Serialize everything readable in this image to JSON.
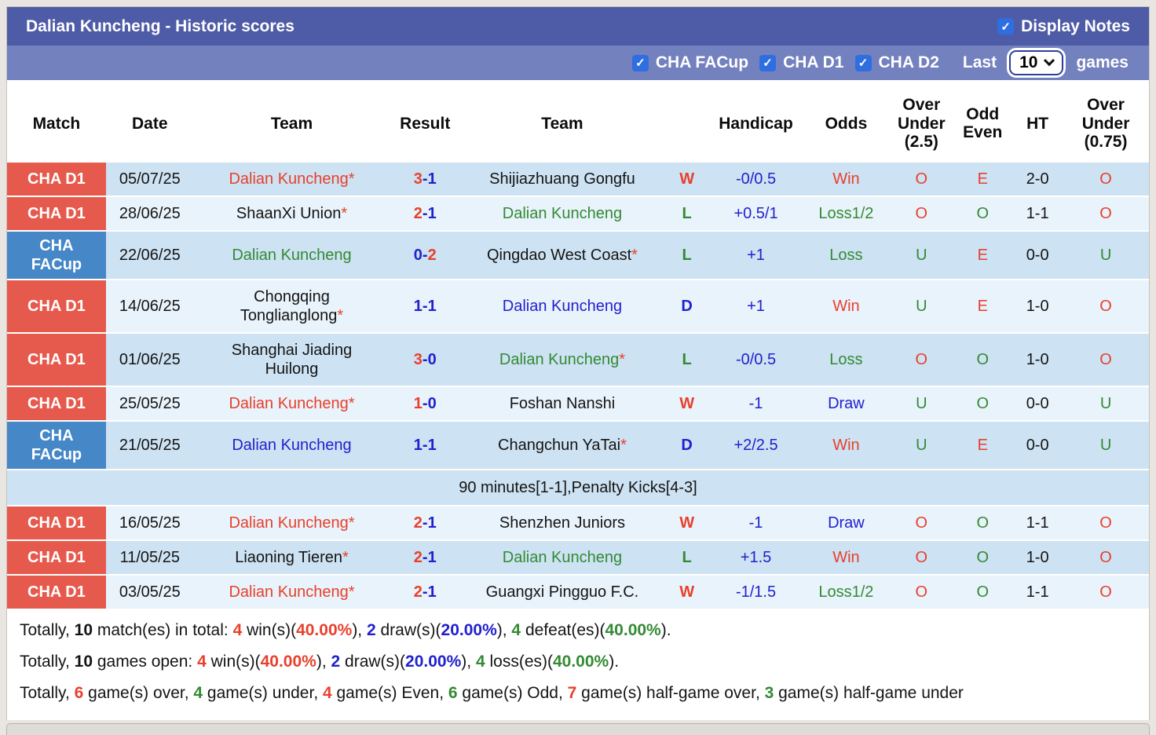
{
  "palette": {
    "red": "#e8402c",
    "green": "#338a33",
    "blue": "#2121cd",
    "black": "#141414",
    "badge_red": "#e65a4d",
    "badge_blue": "#4687c7",
    "bar_dark": "#4e5ba6",
    "bar_light": "#7381bf",
    "row_dark": "#cde2f2",
    "row_light": "#e9f3fb",
    "checkbox_blue": "#2e6ee0"
  },
  "icons": {
    "check": "✓"
  },
  "header": {
    "title": "Dalian Kuncheng - Historic scores",
    "display_notes_label": "Display Notes",
    "display_notes_checked": true,
    "filters": [
      {
        "label": "CHA FACup",
        "checked": true
      },
      {
        "label": "CHA D1",
        "checked": true
      },
      {
        "label": "CHA D2",
        "checked": true
      }
    ],
    "last_label": "Last",
    "last_value": "10",
    "games_label": "games"
  },
  "table": {
    "columns": [
      "Match",
      "Date",
      "Team",
      "Result",
      "Team",
      "",
      "Handicap",
      "Odds",
      "Over\nUnder\n(2.5)",
      "Odd\nEven",
      "HT",
      "Over\nUnder\n(0.75)"
    ],
    "rows": [
      {
        "league": "CHA D1",
        "badge": "red",
        "shade": "dark",
        "date": "05/07/25",
        "home": {
          "name": "Dalian Kuncheng",
          "star": true,
          "color": "red"
        },
        "score": {
          "home": "3",
          "away": "1",
          "home_color": "red",
          "away_color": "blue"
        },
        "away": {
          "name": "Shijiazhuang Gongfu",
          "star": false,
          "color": "black"
        },
        "wdl": {
          "t": "W",
          "c": "red"
        },
        "handicap": "-0/0.5",
        "odds": {
          "t": "Win",
          "c": "red"
        },
        "ou25": {
          "t": "O",
          "c": "red"
        },
        "odd_even": {
          "t": "E",
          "c": "red"
        },
        "ht": "2-0",
        "ou075": {
          "t": "O",
          "c": "red"
        },
        "note": null
      },
      {
        "league": "CHA D1",
        "badge": "red",
        "shade": "light",
        "date": "28/06/25",
        "home": {
          "name": "ShaanXi Union",
          "star": true,
          "color": "black"
        },
        "score": {
          "home": "2",
          "away": "1",
          "home_color": "red",
          "away_color": "blue"
        },
        "away": {
          "name": "Dalian Kuncheng",
          "star": false,
          "color": "green"
        },
        "wdl": {
          "t": "L",
          "c": "green"
        },
        "handicap": "+0.5/1",
        "odds": {
          "t": "Loss1/2",
          "c": "green"
        },
        "ou25": {
          "t": "O",
          "c": "red"
        },
        "odd_even": {
          "t": "O",
          "c": "green"
        },
        "ht": "1-1",
        "ou075": {
          "t": "O",
          "c": "red"
        },
        "note": null
      },
      {
        "league": "CHA\nFACup",
        "badge": "blue",
        "shade": "dark",
        "date": "22/06/25",
        "home": {
          "name": "Dalian Kuncheng",
          "star": false,
          "color": "green"
        },
        "score": {
          "home": "0",
          "away": "2",
          "home_color": "blue",
          "away_color": "red"
        },
        "away": {
          "name": "Qingdao West Coast",
          "star": true,
          "color": "black"
        },
        "wdl": {
          "t": "L",
          "c": "green"
        },
        "handicap": "+1",
        "odds": {
          "t": "Loss",
          "c": "green"
        },
        "ou25": {
          "t": "U",
          "c": "green"
        },
        "odd_even": {
          "t": "E",
          "c": "red"
        },
        "ht": "0-0",
        "ou075": {
          "t": "U",
          "c": "green"
        },
        "note": null
      },
      {
        "league": "CHA D1",
        "badge": "red",
        "shade": "light",
        "date": "14/06/25",
        "home": {
          "name": "Chongqing\nTonglianglong",
          "star": true,
          "color": "black"
        },
        "score": {
          "home": "1",
          "away": "1",
          "home_color": "blue",
          "away_color": "blue"
        },
        "away": {
          "name": "Dalian Kuncheng",
          "star": false,
          "color": "blue"
        },
        "wdl": {
          "t": "D",
          "c": "blue"
        },
        "handicap": "+1",
        "odds": {
          "t": "Win",
          "c": "red"
        },
        "ou25": {
          "t": "U",
          "c": "green"
        },
        "odd_even": {
          "t": "E",
          "c": "red"
        },
        "ht": "1-0",
        "ou075": {
          "t": "O",
          "c": "red"
        },
        "note": null
      },
      {
        "league": "CHA D1",
        "badge": "red",
        "shade": "dark",
        "date": "01/06/25",
        "home": {
          "name": "Shanghai Jiading\nHuilong",
          "star": false,
          "color": "black"
        },
        "score": {
          "home": "3",
          "away": "0",
          "home_color": "red",
          "away_color": "blue"
        },
        "away": {
          "name": "Dalian Kuncheng",
          "star": true,
          "color": "green"
        },
        "wdl": {
          "t": "L",
          "c": "green"
        },
        "handicap": "-0/0.5",
        "odds": {
          "t": "Loss",
          "c": "green"
        },
        "ou25": {
          "t": "O",
          "c": "red"
        },
        "odd_even": {
          "t": "O",
          "c": "green"
        },
        "ht": "1-0",
        "ou075": {
          "t": "O",
          "c": "red"
        },
        "note": null
      },
      {
        "league": "CHA D1",
        "badge": "red",
        "shade": "light",
        "date": "25/05/25",
        "home": {
          "name": "Dalian Kuncheng",
          "star": true,
          "color": "red"
        },
        "score": {
          "home": "1",
          "away": "0",
          "home_color": "red",
          "away_color": "blue"
        },
        "away": {
          "name": "Foshan Nanshi",
          "star": false,
          "color": "black"
        },
        "wdl": {
          "t": "W",
          "c": "red"
        },
        "handicap": "-1",
        "odds": {
          "t": "Draw",
          "c": "blue"
        },
        "ou25": {
          "t": "U",
          "c": "green"
        },
        "odd_even": {
          "t": "O",
          "c": "green"
        },
        "ht": "0-0",
        "ou075": {
          "t": "U",
          "c": "green"
        },
        "note": null
      },
      {
        "league": "CHA\nFACup",
        "badge": "blue",
        "shade": "dark",
        "date": "21/05/25",
        "home": {
          "name": "Dalian Kuncheng",
          "star": false,
          "color": "blue"
        },
        "score": {
          "home": "1",
          "away": "1",
          "home_color": "blue",
          "away_color": "blue"
        },
        "away": {
          "name": "Changchun YaTai",
          "star": true,
          "color": "black"
        },
        "wdl": {
          "t": "D",
          "c": "blue"
        },
        "handicap": "+2/2.5",
        "odds": {
          "t": "Win",
          "c": "red"
        },
        "ou25": {
          "t": "U",
          "c": "green"
        },
        "odd_even": {
          "t": "E",
          "c": "red"
        },
        "ht": "0-0",
        "ou075": {
          "t": "U",
          "c": "green"
        },
        "note": "90 minutes[1-1],Penalty Kicks[4-3]"
      },
      {
        "league": "CHA D1",
        "badge": "red",
        "shade": "light",
        "date": "16/05/25",
        "home": {
          "name": "Dalian Kuncheng",
          "star": true,
          "color": "red"
        },
        "score": {
          "home": "2",
          "away": "1",
          "home_color": "red",
          "away_color": "blue"
        },
        "away": {
          "name": "Shenzhen Juniors",
          "star": false,
          "color": "black"
        },
        "wdl": {
          "t": "W",
          "c": "red"
        },
        "handicap": "-1",
        "odds": {
          "t": "Draw",
          "c": "blue"
        },
        "ou25": {
          "t": "O",
          "c": "red"
        },
        "odd_even": {
          "t": "O",
          "c": "green"
        },
        "ht": "1-1",
        "ou075": {
          "t": "O",
          "c": "red"
        },
        "note": null
      },
      {
        "league": "CHA D1",
        "badge": "red",
        "shade": "dark",
        "date": "11/05/25",
        "home": {
          "name": "Liaoning Tieren",
          "star": true,
          "color": "black"
        },
        "score": {
          "home": "2",
          "away": "1",
          "home_color": "red",
          "away_color": "blue"
        },
        "away": {
          "name": "Dalian Kuncheng",
          "star": false,
          "color": "green"
        },
        "wdl": {
          "t": "L",
          "c": "green"
        },
        "handicap": "+1.5",
        "odds": {
          "t": "Win",
          "c": "red"
        },
        "ou25": {
          "t": "O",
          "c": "red"
        },
        "odd_even": {
          "t": "O",
          "c": "green"
        },
        "ht": "1-0",
        "ou075": {
          "t": "O",
          "c": "red"
        },
        "note": null
      },
      {
        "league": "CHA D1",
        "badge": "red",
        "shade": "light",
        "date": "03/05/25",
        "home": {
          "name": "Dalian Kuncheng",
          "star": true,
          "color": "red"
        },
        "score": {
          "home": "2",
          "away": "1",
          "home_color": "red",
          "away_color": "blue"
        },
        "away": {
          "name": "Guangxi Pingguo F.C.",
          "star": false,
          "color": "black"
        },
        "wdl": {
          "t": "W",
          "c": "red"
        },
        "handicap": "-1/1.5",
        "odds": {
          "t": "Loss1/2",
          "c": "green"
        },
        "ou25": {
          "t": "O",
          "c": "red"
        },
        "odd_even": {
          "t": "O",
          "c": "green"
        },
        "ht": "1-1",
        "ou075": {
          "t": "O",
          "c": "red"
        },
        "note": null
      }
    ]
  },
  "summary": {
    "lines": [
      [
        {
          "t": "Totally, ",
          "c": "black",
          "b": false
        },
        {
          "t": "10",
          "c": "black",
          "b": true
        },
        {
          "t": " match(es) in total: ",
          "c": "black",
          "b": false
        },
        {
          "t": "4",
          "c": "red",
          "b": true
        },
        {
          "t": " win(s)(",
          "c": "black",
          "b": false
        },
        {
          "t": "40.00%",
          "c": "red",
          "b": true
        },
        {
          "t": "), ",
          "c": "black",
          "b": false
        },
        {
          "t": "2",
          "c": "blue",
          "b": true
        },
        {
          "t": " draw(s)(",
          "c": "black",
          "b": false
        },
        {
          "t": "20.00%",
          "c": "blue",
          "b": true
        },
        {
          "t": "), ",
          "c": "black",
          "b": false
        },
        {
          "t": "4",
          "c": "green",
          "b": true
        },
        {
          "t": " defeat(es)(",
          "c": "black",
          "b": false
        },
        {
          "t": "40.00%",
          "c": "green",
          "b": true
        },
        {
          "t": ").",
          "c": "black",
          "b": false
        }
      ],
      [
        {
          "t": "Totally, ",
          "c": "black",
          "b": false
        },
        {
          "t": "10",
          "c": "black",
          "b": true
        },
        {
          "t": " games open: ",
          "c": "black",
          "b": false
        },
        {
          "t": "4",
          "c": "red",
          "b": true
        },
        {
          "t": " win(s)(",
          "c": "black",
          "b": false
        },
        {
          "t": "40.00%",
          "c": "red",
          "b": true
        },
        {
          "t": "), ",
          "c": "black",
          "b": false
        },
        {
          "t": "2",
          "c": "blue",
          "b": true
        },
        {
          "t": " draw(s)(",
          "c": "black",
          "b": false
        },
        {
          "t": "20.00%",
          "c": "blue",
          "b": true
        },
        {
          "t": "), ",
          "c": "black",
          "b": false
        },
        {
          "t": "4",
          "c": "green",
          "b": true
        },
        {
          "t": " loss(es)(",
          "c": "black",
          "b": false
        },
        {
          "t": "40.00%",
          "c": "green",
          "b": true
        },
        {
          "t": ").",
          "c": "black",
          "b": false
        }
      ],
      [
        {
          "t": "Totally, ",
          "c": "black",
          "b": false
        },
        {
          "t": "6",
          "c": "red",
          "b": true
        },
        {
          "t": " game(s) over, ",
          "c": "black",
          "b": false
        },
        {
          "t": "4",
          "c": "green",
          "b": true
        },
        {
          "t": " game(s) under, ",
          "c": "black",
          "b": false
        },
        {
          "t": "4",
          "c": "red",
          "b": true
        },
        {
          "t": " game(s) Even, ",
          "c": "black",
          "b": false
        },
        {
          "t": "6",
          "c": "green",
          "b": true
        },
        {
          "t": " game(s) Odd, ",
          "c": "black",
          "b": false
        },
        {
          "t": "7",
          "c": "red",
          "b": true
        },
        {
          "t": " game(s) half-game over, ",
          "c": "black",
          "b": false
        },
        {
          "t": "3",
          "c": "green",
          "b": true
        },
        {
          "t": " game(s) half-game under",
          "c": "black",
          "b": false
        }
      ]
    ]
  }
}
